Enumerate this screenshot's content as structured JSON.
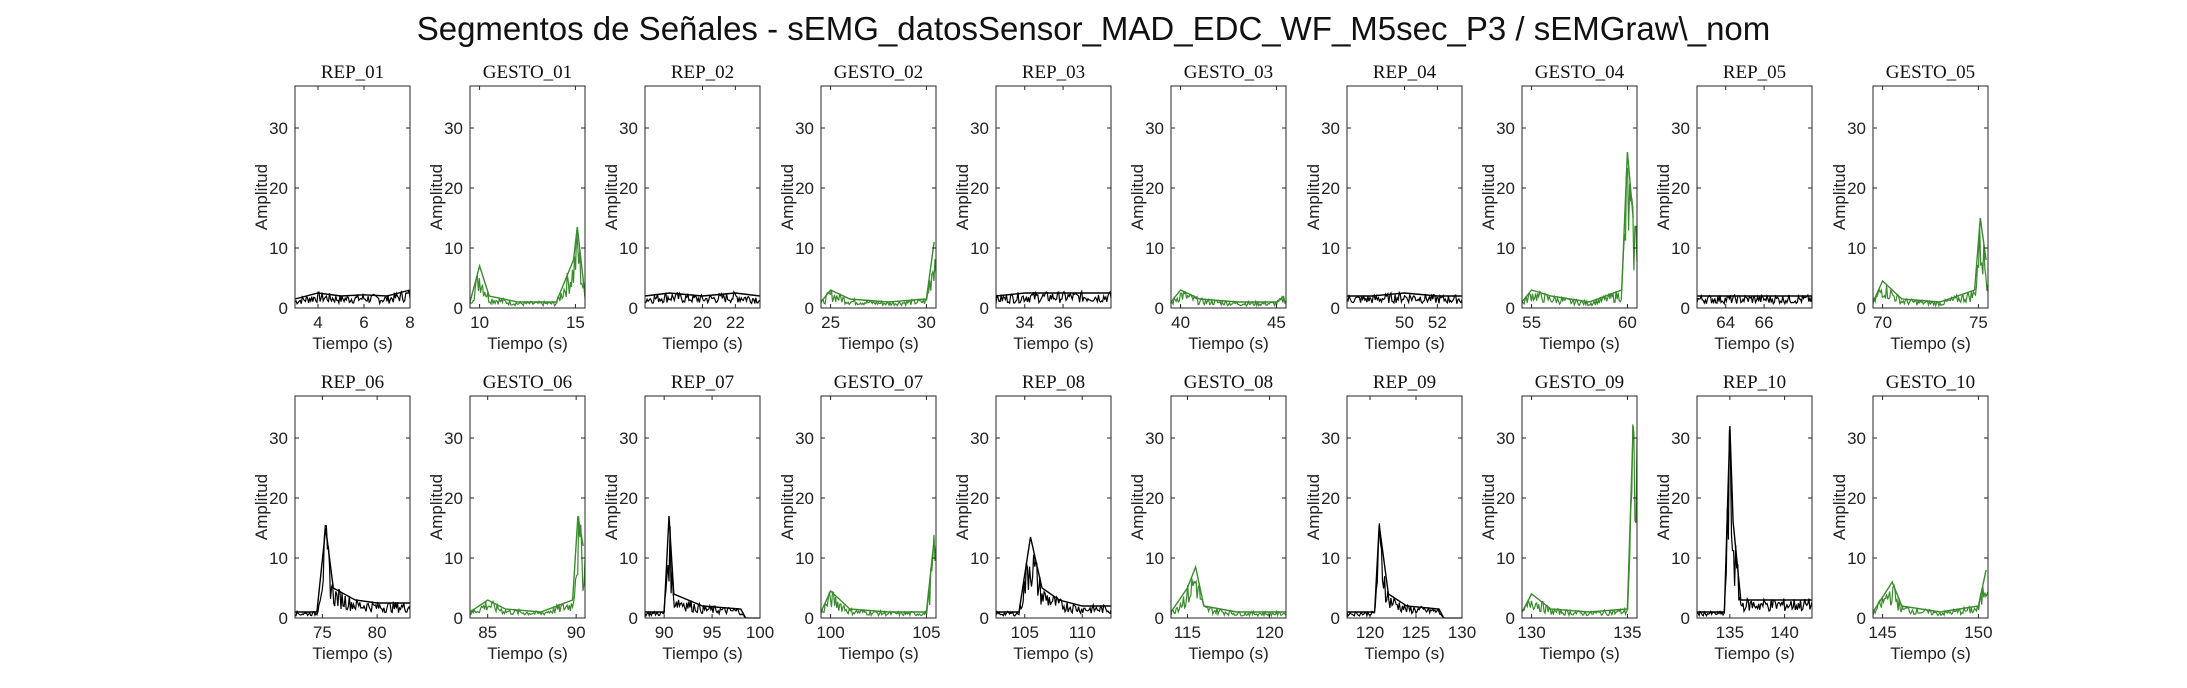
{
  "title": "Segmentos de Señales - sEMG_datosSensor_MAD_EDC_WF_M5sec_P3 / sEMGraw\\_nom",
  "colors": {
    "rep": "#000000",
    "gesto": "#3a8a2e",
    "axis": "#262626"
  },
  "chart_data": [
    {
      "type": "line",
      "title": "REP_01",
      "xlabel": "Tiempo (s)",
      "ylabel": "Amplitud",
      "xlim": [
        3,
        8
      ],
      "ylim": [
        0,
        37
      ],
      "xticks": [
        4,
        6,
        8
      ],
      "yticks": [
        0,
        10,
        20,
        30
      ],
      "series": [
        {
          "color": "#000000",
          "values": [
            {
              "x": 3,
              "y": 1.5
            },
            {
              "x": 4,
              "y": 2.5
            },
            {
              "x": 5,
              "y": 2
            },
            {
              "x": 6,
              "y": 2.2
            },
            {
              "x": 7,
              "y": 2
            },
            {
              "x": 8,
              "y": 3
            }
          ]
        }
      ]
    },
    {
      "type": "line",
      "title": "GESTO_01",
      "xlabel": "Tiempo (s)",
      "ylabel": "Amplitud",
      "xlim": [
        9.5,
        15.5
      ],
      "ylim": [
        0,
        37
      ],
      "xticks": [
        10,
        15
      ],
      "yticks": [
        0,
        10,
        20,
        30
      ],
      "series": [
        {
          "color": "#3a8a2e",
          "values": [
            {
              "x": 9.5,
              "y": 1
            },
            {
              "x": 10,
              "y": 7
            },
            {
              "x": 10.5,
              "y": 2
            },
            {
              "x": 12,
              "y": 1
            },
            {
              "x": 14,
              "y": 1
            },
            {
              "x": 14.9,
              "y": 8
            },
            {
              "x": 15.1,
              "y": 13.5
            },
            {
              "x": 15.5,
              "y": 2
            }
          ]
        }
      ]
    },
    {
      "type": "line",
      "title": "REP_02",
      "xlabel": "Tiempo (s)",
      "ylabel": "Amplitud",
      "xlim": [
        16.5,
        23.5
      ],
      "ylim": [
        0,
        37
      ],
      "xticks": [
        20,
        22
      ],
      "yticks": [
        0,
        10,
        20,
        30
      ],
      "series": [
        {
          "color": "#000000",
          "values": [
            {
              "x": 16.5,
              "y": 2
            },
            {
              "x": 18,
              "y": 2.5
            },
            {
              "x": 20,
              "y": 2
            },
            {
              "x": 22,
              "y": 2.5
            },
            {
              "x": 23.5,
              "y": 2
            }
          ]
        }
      ]
    },
    {
      "type": "line",
      "title": "GESTO_02",
      "xlabel": "Tiempo (s)",
      "ylabel": "Amplitud",
      "xlim": [
        24.5,
        30.5
      ],
      "ylim": [
        0,
        37
      ],
      "xticks": [
        25,
        30
      ],
      "yticks": [
        0,
        10,
        20,
        30
      ],
      "series": [
        {
          "color": "#3a8a2e",
          "values": [
            {
              "x": 24.5,
              "y": 1
            },
            {
              "x": 25,
              "y": 3
            },
            {
              "x": 26,
              "y": 1.5
            },
            {
              "x": 28,
              "y": 1
            },
            {
              "x": 30,
              "y": 1.5
            },
            {
              "x": 30.4,
              "y": 11
            }
          ]
        }
      ]
    },
    {
      "type": "line",
      "title": "REP_03",
      "xlabel": "Tiempo (s)",
      "ylabel": "Amplitud",
      "xlim": [
        32.5,
        38.5
      ],
      "ylim": [
        0,
        37
      ],
      "xticks": [
        34,
        36
      ],
      "yticks": [
        0,
        10,
        20,
        30
      ],
      "series": [
        {
          "color": "#000000",
          "values": [
            {
              "x": 32.5,
              "y": 2
            },
            {
              "x": 34,
              "y": 2.5
            },
            {
              "x": 36,
              "y": 2.5
            },
            {
              "x": 38.5,
              "y": 2.5
            }
          ]
        }
      ]
    },
    {
      "type": "line",
      "title": "GESTO_03",
      "xlabel": "Tiempo (s)",
      "ylabel": "Amplitud",
      "xlim": [
        39.5,
        45.5
      ],
      "ylim": [
        0,
        37
      ],
      "xticks": [
        40,
        45
      ],
      "yticks": [
        0,
        10,
        20,
        30
      ],
      "series": [
        {
          "color": "#3a8a2e",
          "values": [
            {
              "x": 39.5,
              "y": 1
            },
            {
              "x": 40,
              "y": 3
            },
            {
              "x": 41,
              "y": 1.5
            },
            {
              "x": 43,
              "y": 1
            },
            {
              "x": 45,
              "y": 1
            },
            {
              "x": 45.4,
              "y": 2
            }
          ]
        }
      ]
    },
    {
      "type": "line",
      "title": "REP_04",
      "xlabel": "Tiempo (s)",
      "ylabel": "Amplitud",
      "xlim": [
        46.5,
        53.5
      ],
      "ylim": [
        0,
        37
      ],
      "xticks": [
        50,
        52
      ],
      "yticks": [
        0,
        10,
        20,
        30
      ],
      "series": [
        {
          "color": "#000000",
          "values": [
            {
              "x": 46.5,
              "y": 2
            },
            {
              "x": 48,
              "y": 2
            },
            {
              "x": 50,
              "y": 2.5
            },
            {
              "x": 52,
              "y": 2
            },
            {
              "x": 53.5,
              "y": 2
            }
          ]
        }
      ]
    },
    {
      "type": "line",
      "title": "GESTO_04",
      "xlabel": "Tiempo (s)",
      "ylabel": "Amplitud",
      "xlim": [
        54.5,
        60.5
      ],
      "ylim": [
        0,
        37
      ],
      "xticks": [
        55,
        60
      ],
      "yticks": [
        0,
        10,
        20,
        30
      ],
      "series": [
        {
          "color": "#3a8a2e",
          "values": [
            {
              "x": 54.5,
              "y": 1
            },
            {
              "x": 55,
              "y": 3
            },
            {
              "x": 56,
              "y": 2
            },
            {
              "x": 58,
              "y": 1
            },
            {
              "x": 59.7,
              "y": 3
            },
            {
              "x": 60,
              "y": 26
            },
            {
              "x": 60.3,
              "y": 15
            }
          ]
        }
      ]
    },
    {
      "type": "line",
      "title": "REP_05",
      "xlabel": "Tiempo (s)",
      "ylabel": "Amplitud",
      "xlim": [
        62.5,
        68.5
      ],
      "ylim": [
        0,
        37
      ],
      "xticks": [
        64,
        66
      ],
      "yticks": [
        0,
        10,
        20,
        30
      ],
      "series": [
        {
          "color": "#000000",
          "values": [
            {
              "x": 62.5,
              "y": 2
            },
            {
              "x": 64,
              "y": 2
            },
            {
              "x": 66,
              "y": 2
            },
            {
              "x": 68.5,
              "y": 2
            }
          ]
        }
      ]
    },
    {
      "type": "line",
      "title": "GESTO_05",
      "xlabel": "Tiempo (s)",
      "ylabel": "Amplitud",
      "xlim": [
        69.5,
        75.5
      ],
      "ylim": [
        0,
        37
      ],
      "xticks": [
        70,
        75
      ],
      "yticks": [
        0,
        10,
        20,
        30
      ],
      "series": [
        {
          "color": "#3a8a2e",
          "values": [
            {
              "x": 69.5,
              "y": 1
            },
            {
              "x": 70,
              "y": 4.5
            },
            {
              "x": 71,
              "y": 1.5
            },
            {
              "x": 73,
              "y": 1
            },
            {
              "x": 74.8,
              "y": 3
            },
            {
              "x": 75.1,
              "y": 15
            },
            {
              "x": 75.4,
              "y": 8
            }
          ]
        }
      ]
    },
    {
      "type": "line",
      "title": "REP_06",
      "xlabel": "Tiempo (s)",
      "ylabel": "Amplitud",
      "xlim": [
        72.5,
        83
      ],
      "ylim": [
        0,
        37
      ],
      "xticks": [
        75,
        80
      ],
      "yticks": [
        0,
        10,
        20,
        30
      ],
      "series": [
        {
          "color": "#000000",
          "values": [
            {
              "x": 72.5,
              "y": 1
            },
            {
              "x": 74.5,
              "y": 1
            },
            {
              "x": 75.3,
              "y": 15
            },
            {
              "x": 76,
              "y": 5
            },
            {
              "x": 78,
              "y": 3
            },
            {
              "x": 80,
              "y": 2.5
            },
            {
              "x": 83,
              "y": 2.5
            }
          ]
        }
      ]
    },
    {
      "type": "line",
      "title": "GESTO_06",
      "xlabel": "Tiempo (s)",
      "ylabel": "Amplitud",
      "xlim": [
        84,
        90.5
      ],
      "ylim": [
        0,
        37
      ],
      "xticks": [
        85,
        90
      ],
      "yticks": [
        0,
        10,
        20,
        30
      ],
      "series": [
        {
          "color": "#3a8a2e",
          "values": [
            {
              "x": 84,
              "y": 1
            },
            {
              "x": 85,
              "y": 3
            },
            {
              "x": 86,
              "y": 1.5
            },
            {
              "x": 88,
              "y": 1
            },
            {
              "x": 89.8,
              "y": 3
            },
            {
              "x": 90.1,
              "y": 17
            },
            {
              "x": 90.4,
              "y": 12
            }
          ]
        }
      ]
    },
    {
      "type": "line",
      "title": "REP_07",
      "xlabel": "Tiempo (s)",
      "ylabel": "Amplitud",
      "xlim": [
        88,
        100
      ],
      "ylim": [
        0,
        37
      ],
      "xticks": [
        90,
        95,
        100
      ],
      "yticks": [
        0,
        10,
        20,
        30
      ],
      "series": [
        {
          "color": "#000000",
          "values": [
            {
              "x": 88,
              "y": 1
            },
            {
              "x": 90,
              "y": 1
            },
            {
              "x": 90.5,
              "y": 17
            },
            {
              "x": 91,
              "y": 4
            },
            {
              "x": 94,
              "y": 2
            },
            {
              "x": 98,
              "y": 1.5
            },
            {
              "x": 98.5,
              "y": 0
            }
          ]
        }
      ]
    },
    {
      "type": "line",
      "title": "GESTO_07",
      "xlabel": "Tiempo (s)",
      "ylabel": "Amplitud",
      "xlim": [
        99.5,
        105.5
      ],
      "ylim": [
        0,
        37
      ],
      "xticks": [
        100,
        105
      ],
      "yticks": [
        0,
        10,
        20,
        30
      ],
      "series": [
        {
          "color": "#3a8a2e",
          "values": [
            {
              "x": 99.5,
              "y": 1
            },
            {
              "x": 100,
              "y": 4.5
            },
            {
              "x": 101,
              "y": 1.5
            },
            {
              "x": 103,
              "y": 1
            },
            {
              "x": 105,
              "y": 1
            },
            {
              "x": 105.4,
              "y": 13
            }
          ]
        }
      ]
    },
    {
      "type": "line",
      "title": "REP_08",
      "xlabel": "Tiempo (s)",
      "ylabel": "Amplitud",
      "xlim": [
        102.5,
        112.5
      ],
      "ylim": [
        0,
        37
      ],
      "xticks": [
        105,
        110
      ],
      "yticks": [
        0,
        10,
        20,
        30
      ],
      "series": [
        {
          "color": "#000000",
          "values": [
            {
              "x": 102.5,
              "y": 1
            },
            {
              "x": 104.5,
              "y": 1
            },
            {
              "x": 105.5,
              "y": 13.5
            },
            {
              "x": 106.5,
              "y": 5
            },
            {
              "x": 108,
              "y": 3
            },
            {
              "x": 110,
              "y": 2
            },
            {
              "x": 112.5,
              "y": 2
            }
          ]
        }
      ]
    },
    {
      "type": "line",
      "title": "GESTO_08",
      "xlabel": "Tiempo (s)",
      "ylabel": "Amplitud",
      "xlim": [
        114,
        121
      ],
      "ylim": [
        0,
        37
      ],
      "xticks": [
        115,
        120
      ],
      "yticks": [
        0,
        10,
        20,
        30
      ],
      "series": [
        {
          "color": "#3a8a2e",
          "values": [
            {
              "x": 114,
              "y": 1
            },
            {
              "x": 115,
              "y": 5
            },
            {
              "x": 115.5,
              "y": 8.5
            },
            {
              "x": 116,
              "y": 2
            },
            {
              "x": 118,
              "y": 1
            },
            {
              "x": 121,
              "y": 1
            }
          ]
        }
      ]
    },
    {
      "type": "line",
      "title": "REP_09",
      "xlabel": "Tiempo (s)",
      "ylabel": "Amplitud",
      "xlim": [
        117.5,
        130
      ],
      "ylim": [
        0,
        37
      ],
      "xticks": [
        120,
        125,
        130
      ],
      "yticks": [
        0,
        10,
        20,
        30
      ],
      "series": [
        {
          "color": "#000000",
          "values": [
            {
              "x": 117.5,
              "y": 1
            },
            {
              "x": 120.5,
              "y": 1
            },
            {
              "x": 121,
              "y": 15.5
            },
            {
              "x": 122,
              "y": 4
            },
            {
              "x": 124,
              "y": 2
            },
            {
              "x": 127.5,
              "y": 1.5
            },
            {
              "x": 128,
              "y": 0
            }
          ]
        }
      ]
    },
    {
      "type": "line",
      "title": "GESTO_09",
      "xlabel": "Tiempo (s)",
      "ylabel": "Amplitud",
      "xlim": [
        129.5,
        135.5
      ],
      "ylim": [
        0,
        37
      ],
      "xticks": [
        130,
        135
      ],
      "yticks": [
        0,
        10,
        20,
        30
      ],
      "series": [
        {
          "color": "#3a8a2e",
          "values": [
            {
              "x": 129.5,
              "y": 1
            },
            {
              "x": 130,
              "y": 4
            },
            {
              "x": 131,
              "y": 1.5
            },
            {
              "x": 133,
              "y": 1
            },
            {
              "x": 135,
              "y": 1.5
            },
            {
              "x": 135.3,
              "y": 32
            }
          ]
        }
      ]
    },
    {
      "type": "line",
      "title": "REP_10",
      "xlabel": "Tiempo (s)",
      "ylabel": "Amplitud",
      "xlim": [
        132,
        142.5
      ],
      "ylim": [
        0,
        37
      ],
      "xticks": [
        135,
        140
      ],
      "yticks": [
        0,
        10,
        20,
        30
      ],
      "series": [
        {
          "color": "#000000",
          "values": [
            {
              "x": 132,
              "y": 1
            },
            {
              "x": 134.5,
              "y": 1
            },
            {
              "x": 135,
              "y": 32
            },
            {
              "x": 135.3,
              "y": 16
            },
            {
              "x": 136,
              "y": 3
            },
            {
              "x": 138,
              "y": 3
            },
            {
              "x": 140,
              "y": 3
            },
            {
              "x": 142.5,
              "y": 3
            }
          ]
        }
      ]
    },
    {
      "type": "line",
      "title": "GESTO_10",
      "xlabel": "Tiempo (s)",
      "ylabel": "Amplitud",
      "xlim": [
        144.5,
        150.5
      ],
      "ylim": [
        0,
        37
      ],
      "xticks": [
        145,
        150
      ],
      "yticks": [
        0,
        10,
        20,
        30
      ],
      "series": [
        {
          "color": "#3a8a2e",
          "values": [
            {
              "x": 144.5,
              "y": 1
            },
            {
              "x": 145.5,
              "y": 6
            },
            {
              "x": 146,
              "y": 2
            },
            {
              "x": 148,
              "y": 1
            },
            {
              "x": 150,
              "y": 2
            },
            {
              "x": 150.4,
              "y": 8
            }
          ]
        }
      ]
    }
  ]
}
